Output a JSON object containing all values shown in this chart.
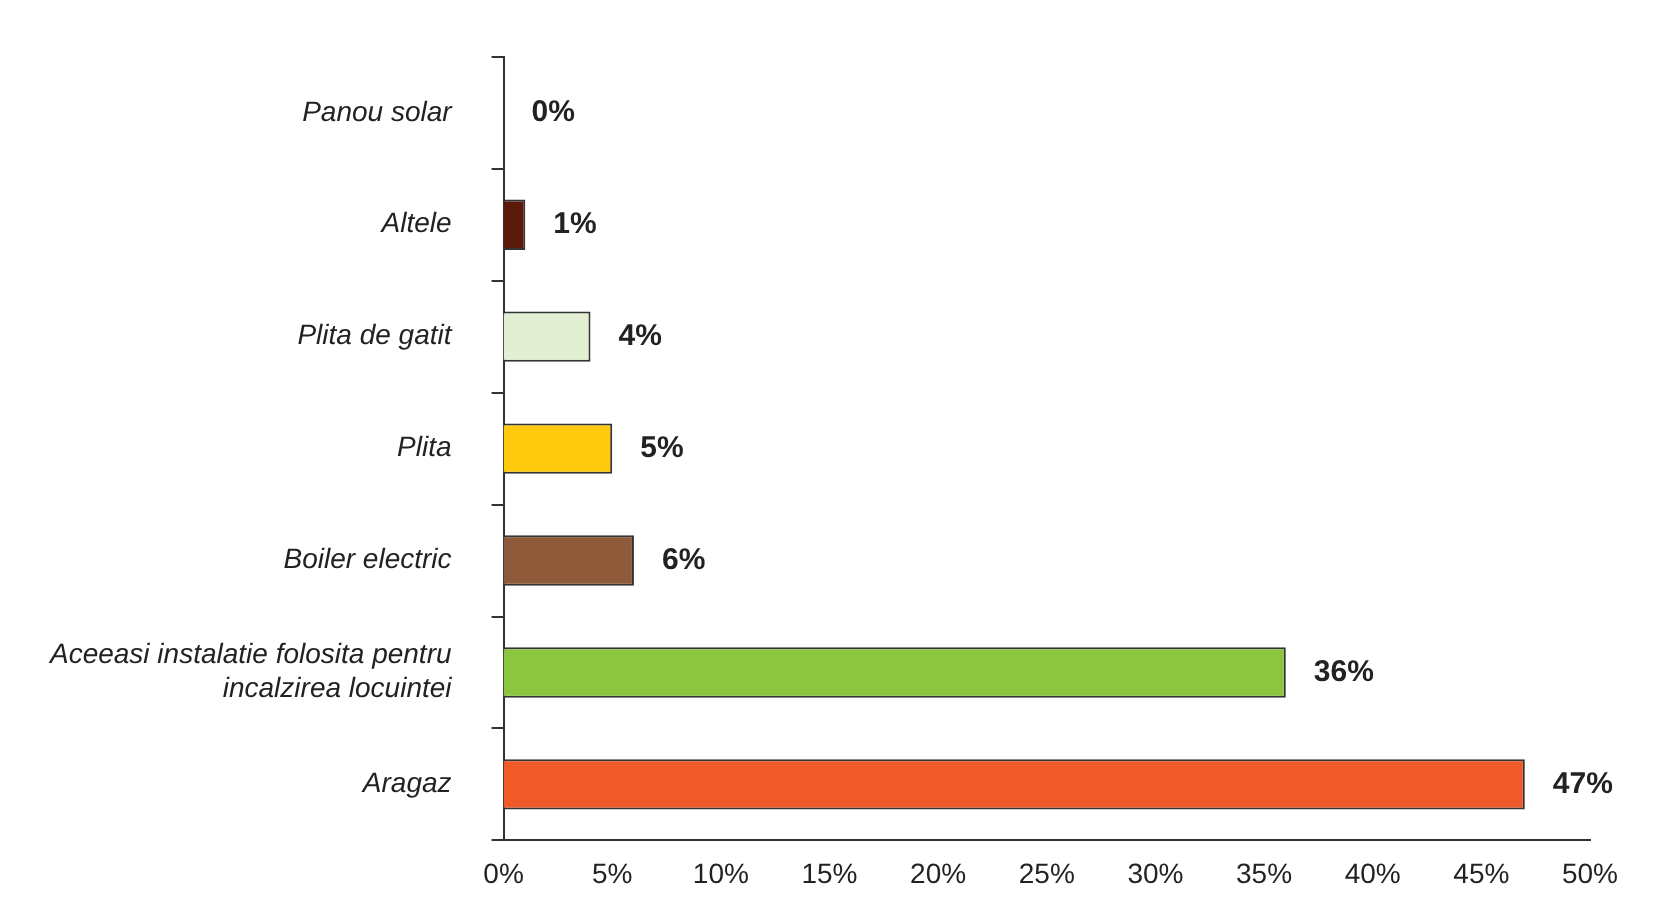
{
  "chart_data": {
    "type": "bar",
    "orientation": "horizontal",
    "categories": [
      "Panou solar",
      "Altele",
      "Plita de gatit",
      "Plita",
      "Boiler electric",
      "Aceeasi instalatie folosita pentru incalzirea locuintei",
      "Aragaz"
    ],
    "values": [
      0,
      1,
      4,
      5,
      6,
      36,
      47
    ],
    "value_labels": [
      "0%",
      "1%",
      "4%",
      "5%",
      "6%",
      "36%",
      "47%"
    ],
    "colors": [
      "#ffffff",
      "#5a1a0a",
      "#e2efd2",
      "#ffc90e",
      "#8e5a3a",
      "#8cc63f",
      "#f05a28"
    ],
    "xlim": [
      0,
      50
    ],
    "xticks": [
      {
        "value": 0,
        "label": "0%"
      },
      {
        "value": 5,
        "label": "5%"
      },
      {
        "value": 10,
        "label": "10%"
      },
      {
        "value": 15,
        "label": "15%"
      },
      {
        "value": 20,
        "label": "20%"
      },
      {
        "value": 25,
        "label": "25%"
      },
      {
        "value": 30,
        "label": "30%"
      },
      {
        "value": 35,
        "label": "35%"
      },
      {
        "value": 40,
        "label": "40%"
      },
      {
        "value": 45,
        "label": "45%"
      },
      {
        "value": 50,
        "label": "50%"
      }
    ],
    "grid": false,
    "legend": false
  }
}
